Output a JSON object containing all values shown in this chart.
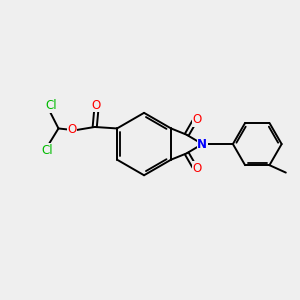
{
  "bg_color": "#efefef",
  "bond_color": "#000000",
  "N_color": "#0000ff",
  "O_color": "#ff0000",
  "Cl_color": "#00bb00",
  "line_width": 1.4,
  "font_size": 8.5,
  "fig_width": 3.0,
  "fig_height": 3.0,
  "dpi": 100,
  "xlim": [
    0,
    10
  ],
  "ylim": [
    0,
    10
  ]
}
